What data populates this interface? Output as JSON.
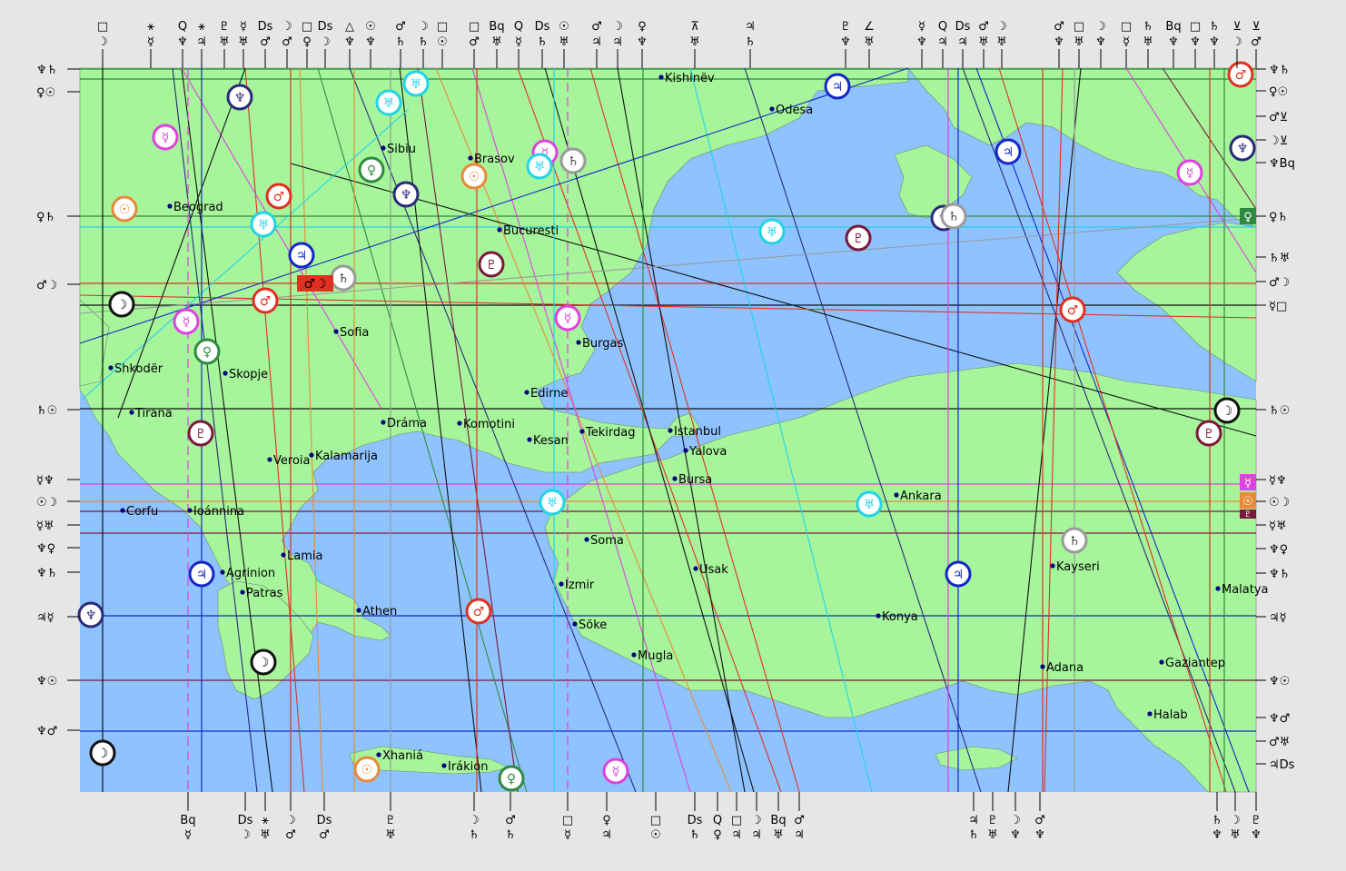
{
  "colors": {
    "sea": "#8fc3ff",
    "land": "#a6f59b",
    "frame": "#e6e6e6",
    "sun": "#e88a3a",
    "moon": "#111111",
    "mercury": "#e040e0",
    "venus": "#2e8b3e",
    "mars": "#e03020",
    "jupiter": "#1428c8",
    "saturn": "#9a9a9a",
    "uranus": "#22d4e8",
    "neptune": "#2a2a7a",
    "pluto": "#7a1a3a"
  },
  "cities": [
    {
      "name": "Kishinëv"
    },
    {
      "name": "Odesa"
    },
    {
      "name": "Sibiu"
    },
    {
      "name": "Brasov"
    },
    {
      "name": "Beograd"
    },
    {
      "name": "Bucuresti"
    },
    {
      "name": "Sofia"
    },
    {
      "name": "Burgas"
    },
    {
      "name": "Shkodër"
    },
    {
      "name": "Skopje"
    },
    {
      "name": "Edirne"
    },
    {
      "name": "Tirana"
    },
    {
      "name": "Dráma"
    },
    {
      "name": "Komotini"
    },
    {
      "name": "Tekirdag"
    },
    {
      "name": "Istanbul"
    },
    {
      "name": "Kesan"
    },
    {
      "name": "Yalova"
    },
    {
      "name": "Veroia"
    },
    {
      "name": "Kalamarija"
    },
    {
      "name": "Bursa"
    },
    {
      "name": "Ankara"
    },
    {
      "name": "Corfu"
    },
    {
      "name": "Ioánnina"
    },
    {
      "name": "Soma"
    },
    {
      "name": "Kayseri"
    },
    {
      "name": "Lamia"
    },
    {
      "name": "Usak"
    },
    {
      "name": "Agrinion"
    },
    {
      "name": "Patras"
    },
    {
      "name": "Izmir"
    },
    {
      "name": "Malatya"
    },
    {
      "name": "Athen"
    },
    {
      "name": "Konya"
    },
    {
      "name": "Söke"
    },
    {
      "name": "Mugla"
    },
    {
      "name": "Gaziantep"
    },
    {
      "name": "Adana"
    },
    {
      "name": "Halab"
    },
    {
      "name": "Xhaniá"
    },
    {
      "name": "Irákion"
    }
  ],
  "top_labels": [
    {
      "glyphs": [
        "□",
        "☽"
      ]
    },
    {
      "glyphs": [
        "⚹",
        "☿"
      ]
    },
    {
      "glyphs": [
        "Q",
        "♆"
      ]
    },
    {
      "glyphs": [
        "⚹",
        "♃"
      ]
    },
    {
      "glyphs": [
        "♇",
        "♅"
      ]
    },
    {
      "glyphs": [
        "☿",
        "♅"
      ]
    },
    {
      "glyphs": [
        "Ds",
        "♂"
      ]
    },
    {
      "glyphs": [
        "☽",
        "♂"
      ]
    },
    {
      "glyphs": [
        "□",
        "♀"
      ]
    },
    {
      "glyphs": [
        "Ds",
        "☽"
      ]
    },
    {
      "glyphs": [
        "△",
        "♆"
      ]
    },
    {
      "glyphs": [
        "☉",
        "♆"
      ]
    },
    {
      "glyphs": [
        "♂",
        "♄"
      ]
    },
    {
      "glyphs": [
        "☽",
        "♄"
      ]
    },
    {
      "glyphs": [
        "□",
        "☉"
      ]
    },
    {
      "glyphs": [
        "□",
        "♂"
      ]
    },
    {
      "glyphs": [
        "Bq",
        "♅"
      ]
    },
    {
      "glyphs": [
        "Q",
        "☿"
      ]
    },
    {
      "glyphs": [
        "Ds",
        "♄"
      ]
    },
    {
      "glyphs": [
        "☉",
        "♅"
      ]
    },
    {
      "glyphs": [
        "♂",
        "♃"
      ]
    },
    {
      "glyphs": [
        "☽",
        "♃"
      ]
    },
    {
      "glyphs": [
        "♀",
        "♆"
      ]
    },
    {
      "glyphs": [
        "⊼",
        "♅"
      ]
    },
    {
      "glyphs": [
        "♃",
        "♄"
      ]
    },
    {
      "glyphs": [
        "♇",
        "♆"
      ]
    },
    {
      "glyphs": [
        "∠",
        "♅"
      ]
    },
    {
      "glyphs": [
        "☿",
        "♆"
      ]
    },
    {
      "glyphs": [
        "Q",
        "♃"
      ]
    },
    {
      "glyphs": [
        "Ds",
        "♃"
      ]
    },
    {
      "glyphs": [
        "♂",
        "♅"
      ]
    },
    {
      "glyphs": [
        "☽",
        "♅"
      ]
    },
    {
      "glyphs": [
        "♂",
        "♆"
      ]
    },
    {
      "glyphs": [
        "□",
        "♅"
      ]
    },
    {
      "glyphs": [
        "☽",
        "♆"
      ]
    },
    {
      "glyphs": [
        "□",
        "☿"
      ]
    },
    {
      "glyphs": [
        "♄",
        "♅"
      ]
    },
    {
      "glyphs": [
        "Bq",
        "♆"
      ]
    },
    {
      "glyphs": [
        "□",
        "♆"
      ]
    },
    {
      "glyphs": [
        "♄",
        "♆"
      ]
    },
    {
      "glyphs": [
        "⊻",
        "☽"
      ]
    },
    {
      "glyphs": [
        "⊻",
        "♂"
      ]
    }
  ],
  "bottom_labels": [
    {
      "glyphs": [
        "Bq",
        "☿"
      ]
    },
    {
      "glyphs": [
        "Ds",
        "☽"
      ]
    },
    {
      "glyphs": [
        "⚹",
        "♅"
      ]
    },
    {
      "glyphs": [
        "☽",
        "♂"
      ]
    },
    {
      "glyphs": [
        "Ds",
        "♂"
      ]
    },
    {
      "glyphs": [
        "♇",
        "♅"
      ]
    },
    {
      "glyphs": [
        "☽",
        "♄"
      ]
    },
    {
      "glyphs": [
        "♂",
        "♄"
      ]
    },
    {
      "glyphs": [
        "□",
        "☿"
      ]
    },
    {
      "glyphs": [
        "♀",
        "♃"
      ]
    },
    {
      "glyphs": [
        "□",
        "☉"
      ]
    },
    {
      "glyphs": [
        "Ds",
        "♄"
      ]
    },
    {
      "glyphs": [
        "Q",
        "♀"
      ]
    },
    {
      "glyphs": [
        "□",
        "♃"
      ]
    },
    {
      "glyphs": [
        "☽",
        "♃"
      ]
    },
    {
      "glyphs": [
        "Bq",
        "♅"
      ]
    },
    {
      "glyphs": [
        "♂",
        "♃"
      ]
    },
    {
      "glyphs": [
        "♃",
        "♄"
      ]
    },
    {
      "glyphs": [
        "♇",
        "♅"
      ]
    },
    {
      "glyphs": [
        "☽",
        "♆"
      ]
    },
    {
      "glyphs": [
        "♂",
        "♆"
      ]
    },
    {
      "glyphs": [
        "♄",
        "♆"
      ]
    },
    {
      "glyphs": [
        "☽",
        "♅"
      ]
    },
    {
      "glyphs": [
        "♇",
        "♆"
      ]
    }
  ],
  "left_labels": [
    {
      "text": "♆♄"
    },
    {
      "text": "♀☉"
    },
    {
      "text": "♀♄"
    },
    {
      "text": "♂☽"
    },
    {
      "text": "♄☉"
    },
    {
      "text": "☿♆"
    },
    {
      "text": "☉☽"
    },
    {
      "text": "☿♅"
    },
    {
      "text": "♆♀"
    },
    {
      "text": "♆♄"
    },
    {
      "text": "♃☿"
    },
    {
      "text": "♆☉"
    },
    {
      "text": "♆♂"
    }
  ],
  "right_labels": [
    {
      "text": "♆♄"
    },
    {
      "text": "♀☉"
    },
    {
      "text": "♂⊻"
    },
    {
      "text": "☽⊻"
    },
    {
      "text": "♆Bq"
    },
    {
      "text": "♀♄"
    },
    {
      "text": "♄♅"
    },
    {
      "text": "♂☽"
    },
    {
      "text": "☿□"
    },
    {
      "text": "♄☉"
    },
    {
      "text": "☿♆"
    },
    {
      "text": "☉☽"
    },
    {
      "text": "☿♅"
    },
    {
      "text": "♆♀"
    },
    {
      "text": "♆♄"
    },
    {
      "text": "♃☿"
    },
    {
      "text": "♆☉"
    },
    {
      "text": "♆♂"
    },
    {
      "text": "♂♅"
    },
    {
      "text": "♃Ds"
    }
  ],
  "planet_markers": [
    {
      "planet": "neptune",
      "glyph": "♆"
    },
    {
      "planet": "uranus",
      "glyph": "♅"
    },
    {
      "planet": "uranus",
      "glyph": "♅"
    },
    {
      "planet": "mercury",
      "glyph": "☿"
    },
    {
      "planet": "venus",
      "glyph": "♀"
    },
    {
      "planet": "neptune",
      "glyph": "♆"
    },
    {
      "planet": "mercury",
      "glyph": "☿"
    },
    {
      "planet": "saturn",
      "glyph": "♄"
    },
    {
      "planet": "uranus",
      "glyph": "♅"
    },
    {
      "planet": "sun",
      "glyph": "☉"
    },
    {
      "planet": "sun",
      "glyph": "☉"
    },
    {
      "planet": "mars",
      "glyph": "♂"
    },
    {
      "planet": "uranus",
      "glyph": "♅"
    },
    {
      "planet": "jupiter",
      "glyph": "♃"
    },
    {
      "planet": "saturn",
      "glyph": "♄"
    },
    {
      "planet": "moon",
      "glyph": "☽"
    },
    {
      "planet": "mars",
      "glyph": "♂"
    },
    {
      "planet": "pluto",
      "glyph": "♇"
    },
    {
      "planet": "mercury",
      "glyph": "☿"
    },
    {
      "planet": "venus",
      "glyph": "♀"
    },
    {
      "planet": "mercury",
      "glyph": "☿"
    },
    {
      "planet": "pluto",
      "glyph": "♇"
    },
    {
      "planet": "uranus",
      "glyph": "♅"
    },
    {
      "planet": "pluto",
      "glyph": "♇"
    },
    {
      "planet": "jupiter",
      "glyph": "♃"
    },
    {
      "planet": "neptune",
      "glyph": "♆"
    },
    {
      "planet": "jupiter",
      "glyph": "♃"
    },
    {
      "planet": "mars",
      "glyph": "♂"
    },
    {
      "planet": "pluto",
      "glyph": "♇"
    },
    {
      "planet": "moon",
      "glyph": "☽"
    },
    {
      "planet": "saturn",
      "glyph": "♄"
    },
    {
      "planet": "jupiter",
      "glyph": "♃"
    },
    {
      "planet": "jupiter",
      "glyph": "♃"
    },
    {
      "planet": "uranus",
      "glyph": "♅"
    },
    {
      "planet": "uranus",
      "glyph": "♅"
    },
    {
      "planet": "neptune",
      "glyph": "♆"
    },
    {
      "planet": "mars",
      "glyph": "♂"
    },
    {
      "planet": "moon",
      "glyph": "☽"
    },
    {
      "planet": "moon",
      "glyph": "☽"
    },
    {
      "planet": "sun",
      "glyph": "☉"
    },
    {
      "planet": "venus",
      "glyph": "♀"
    },
    {
      "planet": "mercury",
      "glyph": "☿"
    },
    {
      "planet": "mercury",
      "glyph": "☿"
    },
    {
      "planet": "saturn",
      "glyph": "♄"
    },
    {
      "planet": "neptune",
      "glyph": "♆"
    },
    {
      "planet": "mars",
      "glyph": "♂"
    }
  ],
  "side_badges": [
    {
      "planet": "venus",
      "glyph": "♀"
    },
    {
      "planet": "mercury",
      "glyph": "☿"
    },
    {
      "planet": "sun",
      "glyph": "☉"
    },
    {
      "planet": "pluto",
      "glyph": "♇"
    }
  ],
  "conjunction_badge": {
    "glyphs": "♂☽"
  }
}
